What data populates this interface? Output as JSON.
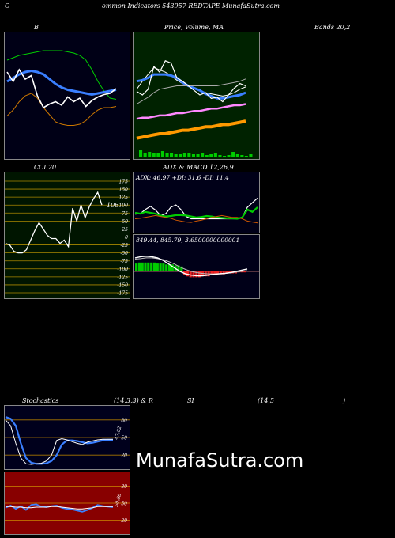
{
  "header": {
    "c": "C",
    "title": "ommon  Indicators 543957 REDTAPE MunafaSutra.com"
  },
  "labels": {
    "bollinger": "B",
    "price_ma": "Price,  Volume,  MA",
    "bands": "Bands 20,2",
    "cci": "CCI 20",
    "adx_macd": "ADX   & MACD 12,26,9",
    "stoch_a": "Stochastics",
    "stoch_b": "(14,3,3) & R",
    "stoch_c": "SI",
    "stoch_d": "(14,5",
    "stoch_e": ")"
  },
  "watermark": "MunafaSutra.com",
  "colors": {
    "bg": "#000000",
    "bollinger_bg": "#000016",
    "price_bg": "#002200",
    "cci_bg": "#001500",
    "adx_bg": "#000018",
    "stoch_bg": "#00001c",
    "rsi_bg": "#880000",
    "green": "#00cc00",
    "blue": "#3a7fff",
    "orange": "#cc7700",
    "white": "#ffffff"
  },
  "chart_data": [
    {
      "id": "bollinger",
      "type": "line",
      "ylim": [
        0,
        100
      ],
      "series": [
        {
          "color": "#00cc00",
          "values": [
            80,
            82,
            84,
            85,
            86,
            87,
            88,
            88,
            88,
            88,
            87,
            86,
            84,
            80,
            72,
            62,
            54,
            48,
            47
          ]
        },
        {
          "color": "#3a7fff",
          "values": [
            62,
            65,
            68,
            70,
            71,
            70,
            68,
            64,
            60,
            57,
            55,
            54,
            53,
            52,
            51,
            52,
            53,
            54,
            55
          ]
        },
        {
          "color": "#cc7700",
          "values": [
            33,
            38,
            45,
            50,
            52,
            48,
            40,
            34,
            28,
            26,
            25,
            25,
            26,
            29,
            34,
            38,
            40,
            40,
            41
          ]
        },
        {
          "color": "#ffffff",
          "values": [
            70,
            62,
            72,
            64,
            67,
            50,
            40,
            43,
            45,
            42,
            49,
            45,
            48,
            41,
            46,
            49,
            51,
            52,
            56
          ]
        }
      ]
    },
    {
      "id": "price_volume_ma",
      "type": "line",
      "ylim": [
        0,
        100
      ],
      "series": [
        {
          "color": "#ffffff",
          "values": [
            55,
            62,
            68,
            74,
            72,
            70,
            67,
            63,
            60,
            58,
            56,
            54,
            52,
            51,
            50,
            49,
            50,
            52,
            55,
            57
          ]
        },
        {
          "color": "#3a7fff",
          "values": [
            62,
            63,
            65,
            68,
            68,
            68,
            67,
            65,
            61,
            58,
            56,
            54,
            51,
            49,
            47,
            47,
            48,
            49,
            50,
            52
          ]
        },
        {
          "color": "#aaaaaa",
          "values": [
            42,
            45,
            48,
            52,
            55,
            56,
            57,
            58,
            58,
            58,
            58,
            58,
            58,
            58,
            58,
            59,
            60,
            61,
            62,
            64
          ]
        },
        {
          "color": "#ffffff",
          "values": [
            53,
            50,
            55,
            75,
            70,
            80,
            78,
            65,
            62,
            58,
            54,
            50,
            52,
            47,
            48,
            44,
            50,
            56,
            60,
            58
          ]
        },
        {
          "color": "#ff88ff",
          "values": [
            29,
            30,
            30,
            31,
            32,
            32,
            33,
            34,
            34,
            35,
            36,
            36,
            37,
            38,
            38,
            39,
            40,
            41,
            41,
            42
          ]
        },
        {
          "color": "#ff9900",
          "values": [
            12,
            13,
            14,
            15,
            16,
            16,
            17,
            18,
            19,
            19,
            20,
            21,
            22,
            22,
            23,
            24,
            24,
            25,
            26,
            27
          ]
        }
      ],
      "volume": [
        10,
        6,
        7,
        5,
        6,
        8,
        5,
        6,
        4,
        4,
        5,
        5,
        4,
        4,
        5,
        3,
        4,
        6,
        3,
        2,
        3,
        7,
        4,
        3,
        2,
        4
      ]
    },
    {
      "id": "cci",
      "type": "line",
      "ylim": [
        -175,
        175
      ],
      "ticks": [
        175,
        150,
        125,
        100,
        75,
        50,
        25,
        0,
        -25,
        -50,
        -75,
        -100,
        -125,
        -150,
        -175
      ],
      "values": [
        -20,
        -25,
        -45,
        -50,
        -50,
        -40,
        -10,
        20,
        45,
        25,
        5,
        -5,
        -5,
        -20,
        -10,
        -30,
        90,
        50,
        100,
        60,
        95,
        120,
        140,
        100
      ],
      "last_label": "106"
    },
    {
      "id": "adx",
      "type": "line",
      "ylim": [
        0,
        100
      ],
      "readout": "ADX: 46.97  +DI: 31.6  -DI: 11.4",
      "series": [
        {
          "color": "#ffffff",
          "values": [
            35,
            36,
            45,
            52,
            44,
            32,
            36,
            50,
            55,
            45,
            30,
            25,
            25,
            25,
            25,
            25,
            25,
            25,
            25,
            25,
            25,
            28,
            50,
            60,
            70
          ]
        },
        {
          "color": "#00cc00",
          "values": [
            38,
            36,
            40,
            38,
            36,
            32,
            30,
            31,
            33,
            33,
            32,
            30,
            28,
            29,
            31,
            30,
            28,
            27,
            26,
            26,
            25,
            28,
            45,
            40,
            50
          ]
        },
        {
          "color": "#cc5500",
          "values": [
            25,
            26,
            28,
            30,
            32,
            30,
            28,
            26,
            22,
            20,
            18,
            17,
            20,
            22,
            25,
            28,
            30,
            32,
            30,
            28,
            28,
            25,
            20,
            18,
            16
          ]
        }
      ]
    },
    {
      "id": "macd",
      "type": "bar",
      "ylim": [
        -100,
        100
      ],
      "readout": "849.44,  845.79,  3.6500000000001",
      "macd": [
        55,
        60,
        62,
        60,
        55,
        45,
        30,
        15,
        0,
        -10,
        -15,
        -18,
        -18,
        -15,
        -12,
        -10,
        -8,
        -5,
        0,
        5,
        10
      ],
      "signal": [
        50,
        52,
        55,
        55,
        52,
        48,
        40,
        30,
        18,
        8,
        0,
        -5,
        -8,
        -10,
        -10,
        -9,
        -8,
        -6,
        -3,
        0,
        3
      ],
      "histogram": [
        8,
        9,
        9,
        9,
        9,
        9,
        9,
        8,
        8,
        8,
        7,
        7,
        7,
        6,
        6,
        5,
        -4,
        -5,
        -6,
        -6,
        -6,
        -6,
        -5,
        -5,
        -5,
        -4,
        -4,
        -3,
        -3,
        -3,
        -2,
        -2,
        -2,
        -2,
        -1,
        -1,
        -1
      ]
    },
    {
      "id": "stochastics",
      "type": "line",
      "ylim": [
        0,
        100
      ],
      "ticks": [
        80,
        50,
        20
      ],
      "last_label": "47.02",
      "series": [
        {
          "color": "#3a7fff",
          "values": [
            85,
            82,
            70,
            40,
            15,
            7,
            5,
            5,
            6,
            10,
            20,
            38,
            45,
            45,
            44,
            42,
            40,
            41,
            43,
            45,
            46,
            46
          ]
        },
        {
          "color": "#ffffff",
          "values": [
            80,
            70,
            40,
            15,
            5,
            4,
            5,
            6,
            10,
            20,
            45,
            48,
            46,
            43,
            40,
            38,
            42,
            44,
            46,
            47,
            47,
            47
          ]
        }
      ]
    },
    {
      "id": "rsi",
      "type": "line",
      "ylim": [
        0,
        100
      ],
      "ticks": [
        80,
        50,
        20
      ],
      "last_label": "50.66",
      "series": [
        {
          "color": "#3a7fff",
          "values": [
            42,
            46,
            40,
            45,
            38,
            47,
            48,
            44,
            43,
            45,
            46,
            42,
            40,
            39,
            37,
            35,
            38,
            42,
            47,
            45,
            44,
            43
          ]
        },
        {
          "color": "#ffffff",
          "values": [
            44,
            44,
            43,
            43,
            42,
            42,
            43,
            43,
            43,
            44,
            44,
            43,
            42,
            41,
            40,
            40,
            41,
            42,
            44,
            44,
            44,
            44
          ]
        }
      ]
    }
  ]
}
